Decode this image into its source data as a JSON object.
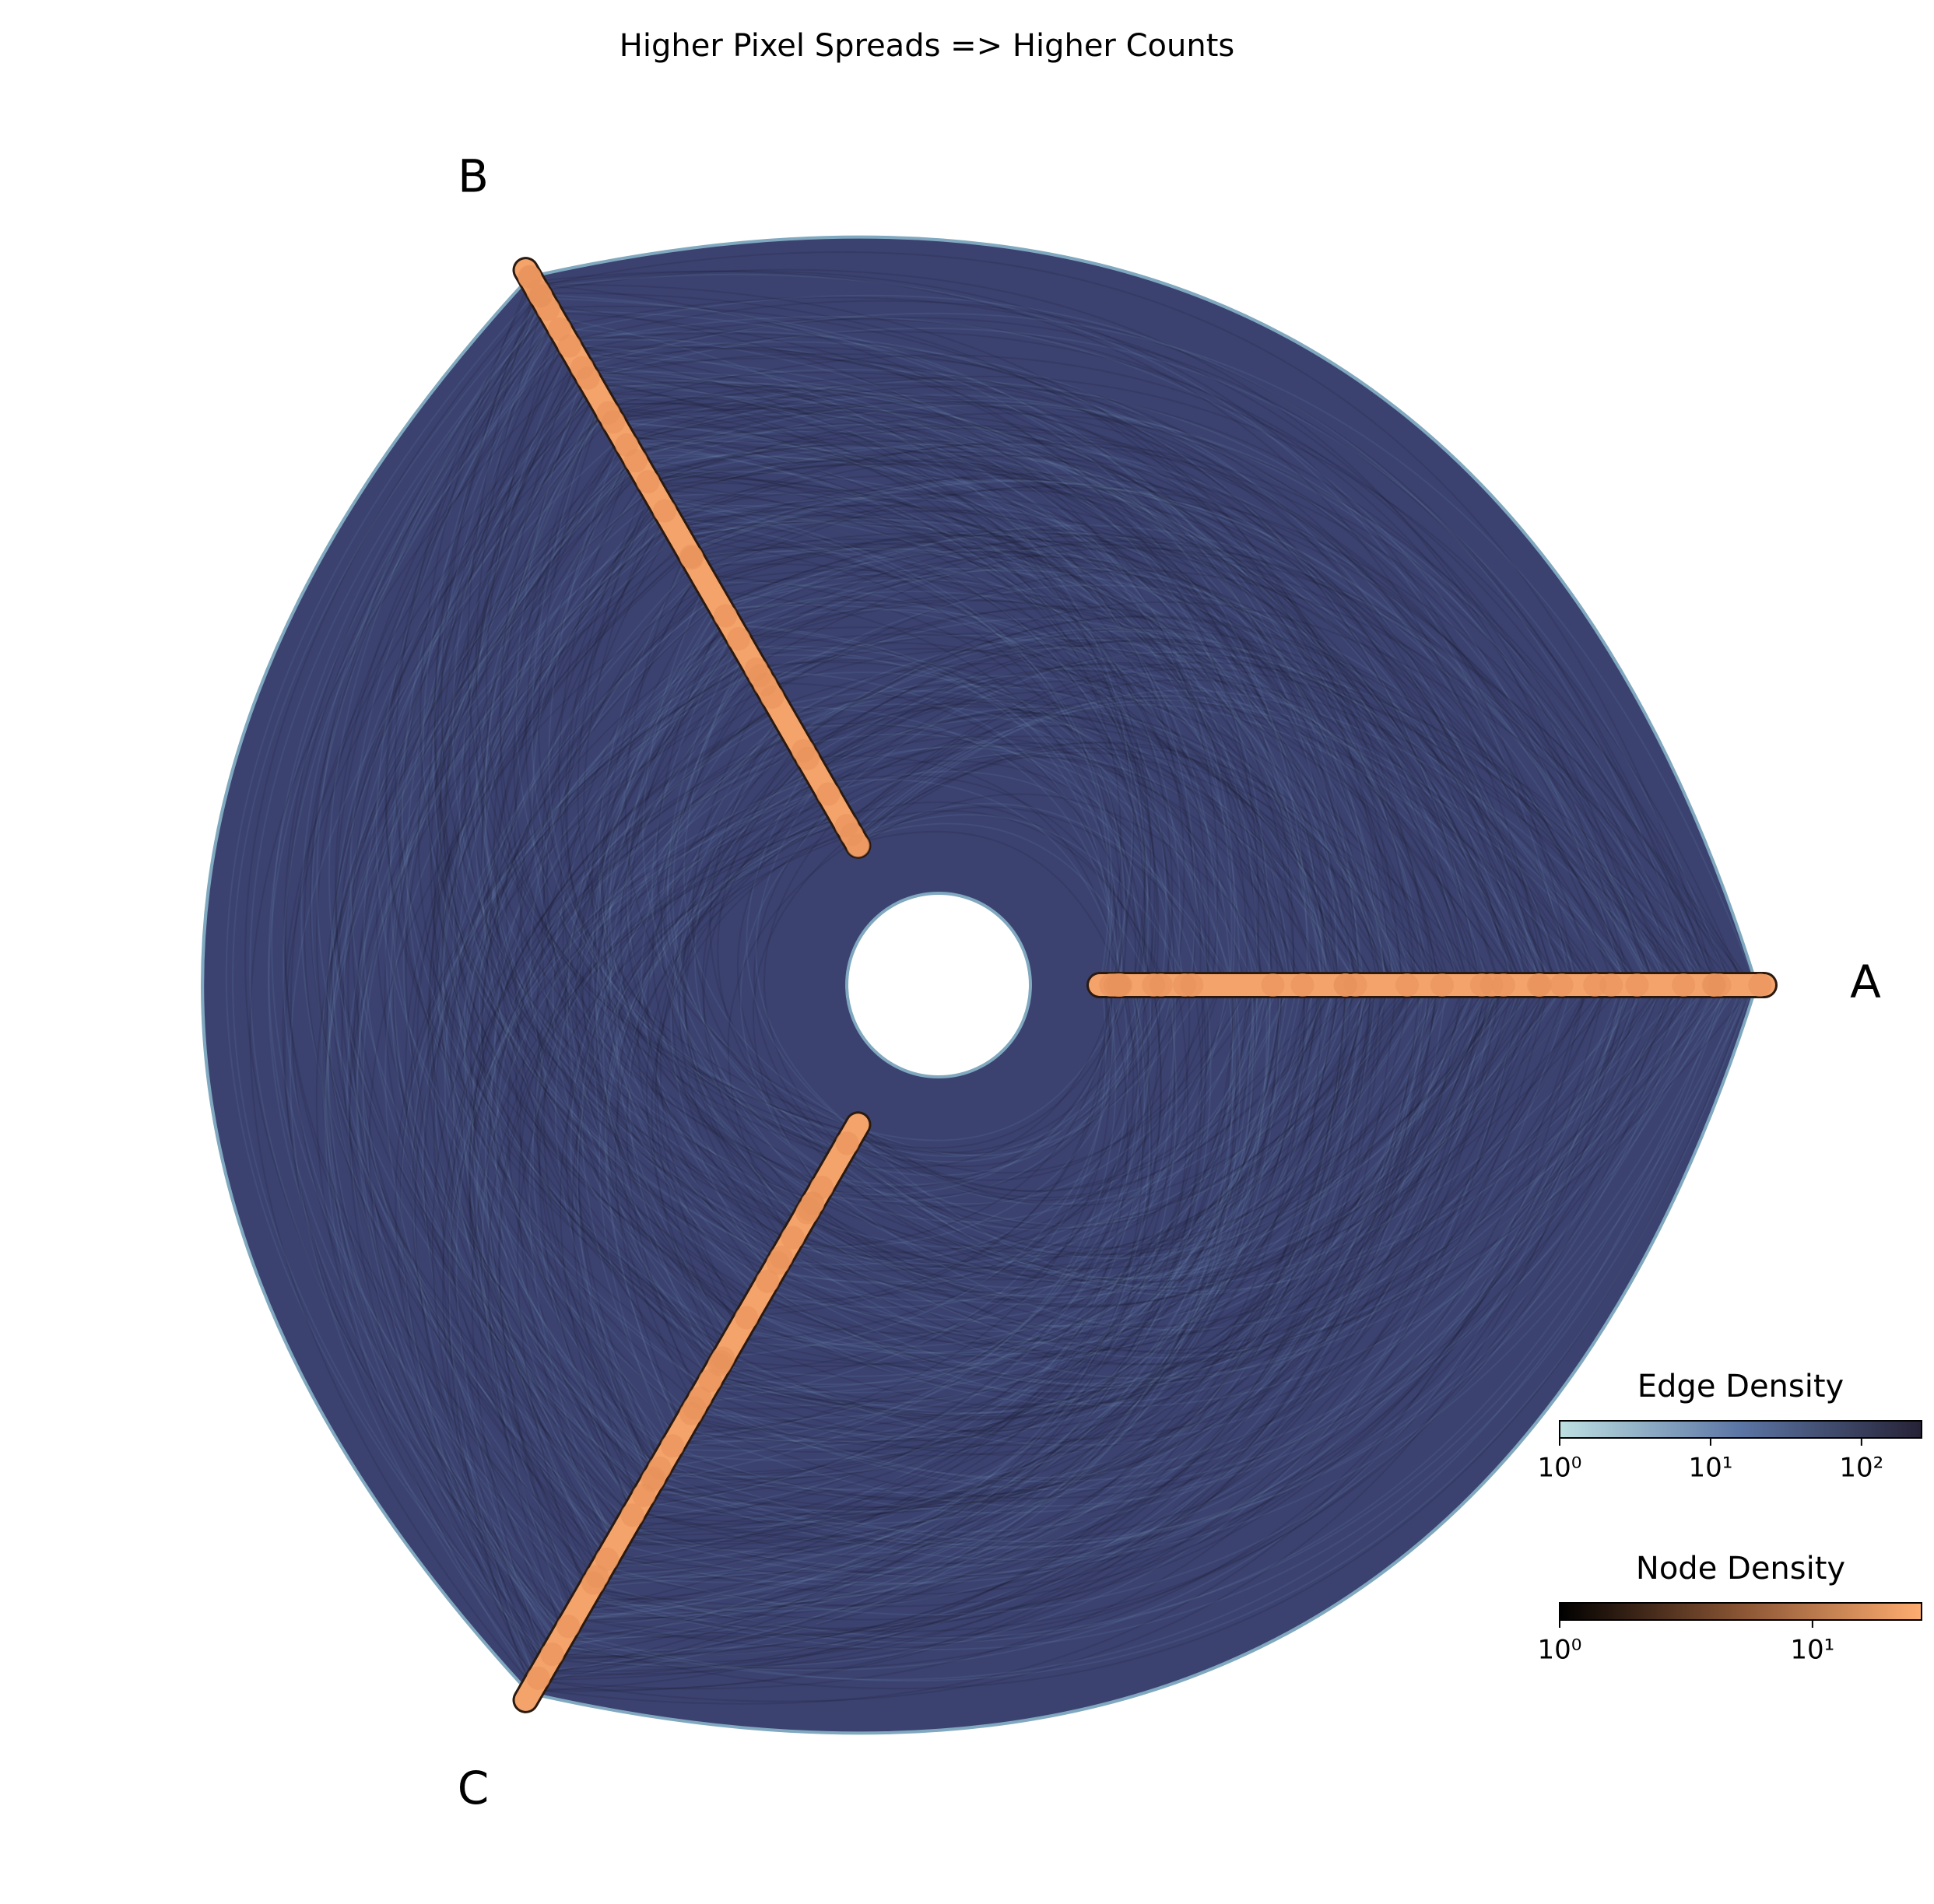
{
  "chart_data": {
    "type": "hive",
    "title": "Higher Pixel Spreads => Higher Counts",
    "axes": [
      {
        "label": "A"
      },
      {
        "label": "B"
      },
      {
        "label": "C"
      }
    ],
    "edge_color": "#3b4270",
    "edge_outline_color": "#80a8bf",
    "node_color": "#f4a36a",
    "node_outline_color": "#2a1a10",
    "colorbars": [
      {
        "title": "Edge Density",
        "log": true,
        "lim": [
          1,
          250
        ],
        "ticks": [
          {
            "value": 1,
            "label": "10⁰"
          },
          {
            "value": 10,
            "label": "10¹"
          },
          {
            "value": 100,
            "label": "10²"
          }
        ],
        "colors": [
          "#bde0e2",
          "#5b75a4",
          "#262236"
        ]
      },
      {
        "title": "Node Density",
        "log": true,
        "lim": [
          1,
          27
        ],
        "ticks": [
          {
            "value": 1,
            "label": "10⁰"
          },
          {
            "value": 10,
            "label": "10¹"
          }
        ],
        "colors": [
          "#000000",
          "#8a5534",
          "#ffad70"
        ]
      }
    ]
  }
}
